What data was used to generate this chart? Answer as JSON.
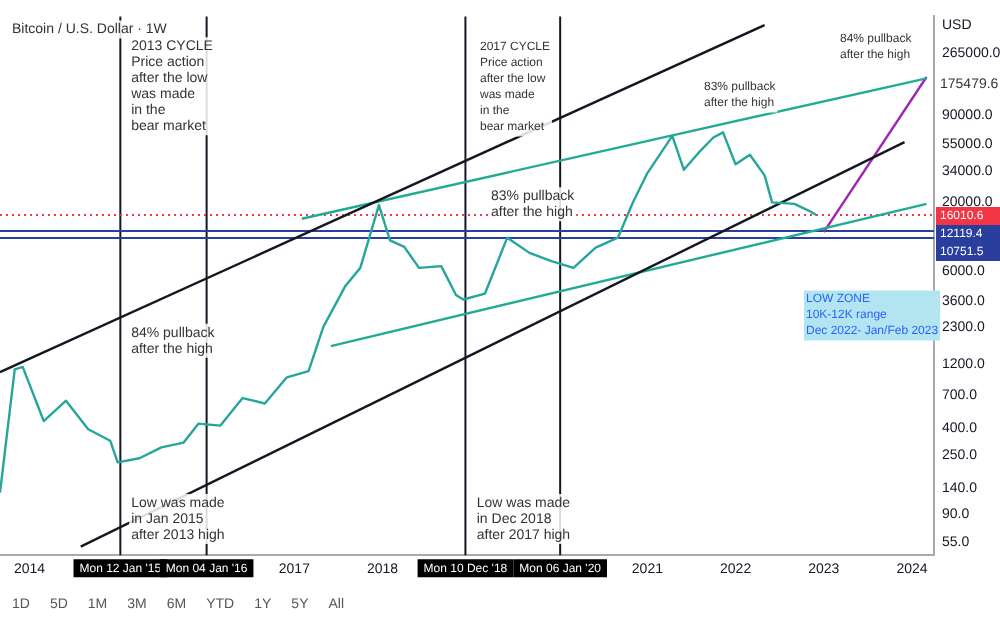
{
  "chart_data": {
    "type": "line",
    "title": "Bitcoin / U.S. Dollar · 1W",
    "ylabel": "USD",
    "log": "y",
    "grid": false,
    "legend": false,
    "marker": "none",
    "xlim": [
      "2013-09",
      "2024-04"
    ],
    "xticks": [
      "2014",
      "2017",
      "2018",
      "2021",
      "2022",
      "2023",
      "2024"
    ],
    "ylim": [
      44,
      500000
    ],
    "yticks": [
      {
        "value": 55,
        "label": "55.0"
      },
      {
        "value": 90,
        "label": "90.0"
      },
      {
        "value": 140,
        "label": "140.0"
      },
      {
        "value": 250,
        "label": "250.0"
      },
      {
        "value": 400,
        "label": "400.0"
      },
      {
        "value": 700,
        "label": "700.0"
      },
      {
        "value": 1200,
        "label": "1200.0"
      },
      {
        "value": 2300,
        "label": "2300.0"
      },
      {
        "value": 3600,
        "label": "3600.0"
      },
      {
        "value": 6000,
        "label": "6000.0"
      },
      {
        "value": 20000,
        "label": "20000.0"
      },
      {
        "value": 34000,
        "label": "34000.0"
      },
      {
        "value": 55000,
        "label": "55000.0"
      },
      {
        "value": 90000,
        "label": "90000.0"
      },
      {
        "value": 265000,
        "label": "265000.0"
      }
    ],
    "series": [
      {
        "color": "#26a69a",
        "x": [
          "2013-09",
          "2013-11",
          "2013-12-04",
          "2014-01",
          "2014-03",
          "2014-06",
          "2014-09",
          "2014-12",
          "2015-01",
          "2015-04",
          "2015-07",
          "2015-10",
          "2015-12",
          "2016-03",
          "2016-06",
          "2016-09",
          "2016-12",
          "2017-03",
          "2017-05",
          "2017-08",
          "2017-10",
          "2017-12-17",
          "2018-02",
          "2018-04",
          "2018-06",
          "2018-09",
          "2018-11",
          "2018-12",
          "2019-03",
          "2019-06",
          "2019-09",
          "2019-12",
          "2020-03",
          "2020-06",
          "2020-09",
          "2020-11",
          "2021-01",
          "2021-04-14",
          "2021-06",
          "2021-08",
          "2021-10",
          "2021-11-10",
          "2022-01",
          "2022-03",
          "2022-05",
          "2022-06",
          "2022-09",
          "2022-11",
          "2022-12"
        ],
        "values": [
          130,
          1100,
          1150,
          850,
          450,
          640,
          390,
          320,
          220,
          236,
          285,
          310,
          430,
          416,
          670,
          610,
          960,
          1070,
          2300,
          4700,
          6400,
          19000,
          10300,
          9200,
          6400,
          6600,
          4000,
          3700,
          4100,
          10800,
          8300,
          7200,
          6400,
          9100,
          10800,
          19700,
          33100,
          63000,
          35000,
          47100,
          61300,
          67000,
          38500,
          45500,
          31800,
          19900,
          19400,
          17200,
          16010
        ]
      },
      {
        "color": "#131722",
        "x": [
          "2013-09",
          "2022-05"
        ],
        "values": [
          1050,
          430000
        ]
      },
      {
        "color": "#131722",
        "x": [
          "2014-08",
          "2023-12"
        ],
        "values": [
          51,
          56600
        ]
      },
      {
        "color": "#22ab94",
        "x": [
          "2017-02",
          "2024-03"
        ],
        "values": [
          15000,
          171000
        ]
      },
      {
        "color": "#22ab94",
        "x": [
          "2017-06",
          "2024-03"
        ],
        "values": [
          1650,
          19400
        ]
      },
      {
        "color": "#9c27b0",
        "x": [
          "2023-01",
          "2024-03"
        ],
        "values": [
          11900,
          175000
        ]
      }
    ],
    "ref_lines": [
      {
        "axis": "x",
        "value": "2015-01-12",
        "label": "Mon 12 Jan '15",
        "color": "#131722"
      },
      {
        "axis": "x",
        "value": "2016-01-04",
        "label": "Mon 04 Jan '16",
        "color": "#131722"
      },
      {
        "axis": "x",
        "value": "2018-12-10",
        "label": "Mon 10 Dec '18",
        "color": "#131722"
      },
      {
        "axis": "x",
        "value": "2020-01-06",
        "label": "Mon 06 Jan '20",
        "color": "#131722"
      },
      {
        "axis": "y",
        "value": 16010.6,
        "label": "16010.6",
        "color": "#f23645",
        "line_style": "dotted"
      },
      {
        "axis": "y",
        "value": 12119.4,
        "label": "12119.4",
        "color": "#2a3f9d"
      },
      {
        "axis": "y",
        "value": 10751.5,
        "label": "10751.5",
        "color": "#2a3f9d"
      }
    ],
    "annotations": [
      {
        "text": "2013 CYCLE\nPrice action\nafter the low\nwas made\nin the\nbear market",
        "x": "2015-02",
        "y": 337000
      },
      "2017 CYCLE\nPrice action\nafter the low\nwas made\nin the\nbear market",
      {
        "text": "84% pullback\nafter the high",
        "x": "2015-02",
        "y": 2350
      },
      {
        "text": "83% pullback\nafter the high",
        "x": "2019-03",
        "y": 25000
      },
      "83% pullback\nafter the high",
      "84% pullback\nafter the high",
      {
        "text": "Low was made\nin Jan 2015\nafter 2013 high",
        "x": "2015-02",
        "y": 123
      },
      {
        "text": "Low was made\nin Dec 2018\nafter 2017 high",
        "x": "2019-01",
        "y": 123
      },
      "LOW ZONE\n10K-12K range\nDec 2022- Jan/Feb 2023",
      {
        "text": "175479.6",
        "x": "2024-04",
        "y": 175479.6
      },
      "1D",
      "5D",
      "1M",
      "3M",
      "6M",
      "YTD",
      "1Y",
      "5Y",
      "All"
    ]
  }
}
